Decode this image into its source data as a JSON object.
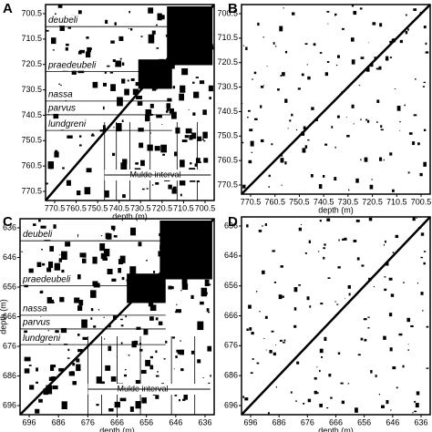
{
  "panels": [
    {
      "label": "A",
      "yticks": [
        "700.5",
        "710.5",
        "720.5",
        "730.5",
        "740.5",
        "750.5",
        "760.5",
        "770.5"
      ],
      "xticks": [
        "770.5",
        "760.5",
        "750.5",
        "740.5",
        "730.5",
        "720.5",
        "710.5",
        "700.5"
      ],
      "xlabel": "depth (m)",
      "zones": [
        "deubeli",
        "praedeubeli",
        "nassa",
        "parvus",
        "lundgreni"
      ],
      "interval": "Mulde interval"
    },
    {
      "label": "B",
      "yticks": [
        "700.5",
        "710.5",
        "720.5",
        "730.5",
        "740.5",
        "750.5",
        "760.5",
        "770.5"
      ],
      "xticks": [
        "770.5",
        "760.5",
        "750.5",
        "740.5",
        "730.5",
        "720.5",
        "710.5",
        "700.5"
      ],
      "xlabel": "depth (m)"
    },
    {
      "label": "C",
      "yticks": [
        "636",
        "646",
        "656",
        "666",
        "676",
        "686",
        "696"
      ],
      "xticks": [
        "696",
        "686",
        "676",
        "666",
        "656",
        "646",
        "636"
      ],
      "xlabel": "depth (m)",
      "ylabel": "depth (m)",
      "zones": [
        "deubeli",
        "praedeubeli",
        "nassa",
        "parvus",
        "lundgreni"
      ],
      "interval": "Mulde interval"
    },
    {
      "label": "D",
      "yticks": [
        "636",
        "646",
        "656",
        "666",
        "676",
        "686",
        "696"
      ],
      "xticks": [
        "696",
        "686",
        "676",
        "666",
        "656",
        "646",
        "636"
      ],
      "xlabel": "depth (m)"
    }
  ]
}
